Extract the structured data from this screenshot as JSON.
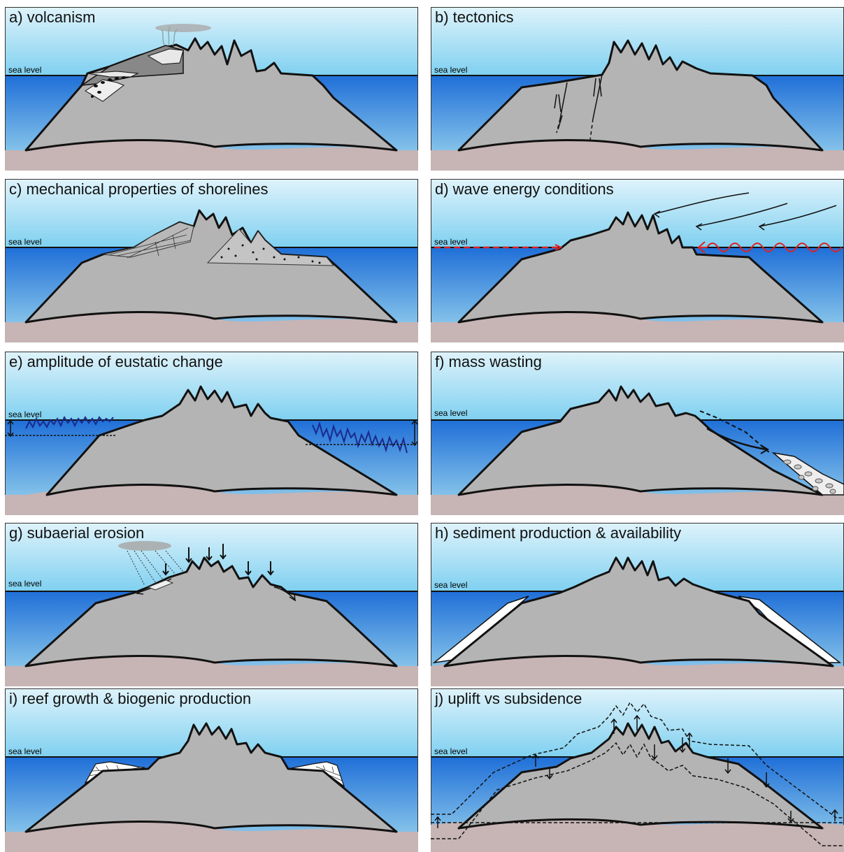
{
  "panels": [
    {
      "id": "a",
      "title": "a) volcanism",
      "sea_label": "sea level"
    },
    {
      "id": "b",
      "title": "b) tectonics",
      "sea_label": "sea level"
    },
    {
      "id": "c",
      "title": "c) mechanical properties of shorelines",
      "sea_label": "sea level"
    },
    {
      "id": "d",
      "title": "d) wave energy conditions",
      "sea_label": "sea level"
    },
    {
      "id": "e",
      "title": "e) amplitude of eustatic change",
      "sea_label": "sea level"
    },
    {
      "id": "f",
      "title": "f) mass wasting",
      "sea_label": "sea level"
    },
    {
      "id": "g",
      "title": "g) subaerial erosion",
      "sea_label": "sea level"
    },
    {
      "id": "h",
      "title": "h) sediment production & availability",
      "sea_label": "sea level"
    },
    {
      "id": "i",
      "title": "i) reef growth & biogenic production",
      "sea_label": "sea level"
    },
    {
      "id": "j",
      "title": "j) uplift vs subsidence",
      "sea_label": "sea level"
    }
  ],
  "colors": {
    "sky_top": "#dff3fb",
    "sky_bottom": "#7fd0f0",
    "sea_top": "#1f6fd8",
    "sea_bottom": "#9fd8ee",
    "island": "#b4b4b4",
    "seafloor": "#c7b4b4",
    "wave_red": "#e02020",
    "eustatic_blue": "#1a2a8c"
  }
}
